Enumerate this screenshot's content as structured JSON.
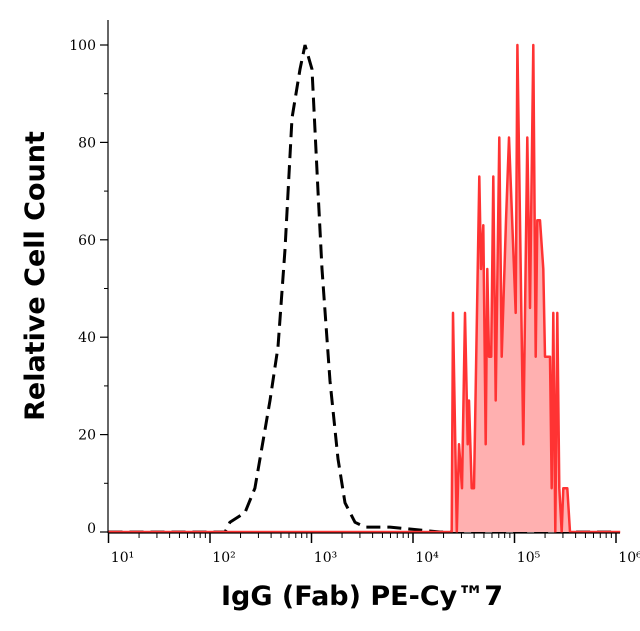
{
  "chart_data": {
    "type": "area",
    "xlabel": "IgG (Fab) PE-Cy™7",
    "ylabel": "Relative Cell Count",
    "x_scale": "log",
    "xlim": [
      10,
      1100000
    ],
    "ylim": [
      0,
      100
    ],
    "x_ticks": [
      10,
      100,
      1000,
      10000,
      100000,
      1000000
    ],
    "x_tick_labels": [
      "10¹",
      "10²",
      "10³",
      "10⁴",
      "10⁵",
      "10⁶"
    ],
    "y_ticks": [
      0,
      20,
      40,
      60,
      80,
      100
    ],
    "y_tick_labels": [
      "0",
      "20",
      "40",
      "60",
      "80",
      "100"
    ],
    "grid": false,
    "series": [
      {
        "style": "dashed-line",
        "color": "#000000",
        "x": [
          10,
          141,
          157,
          221,
          277,
          348,
          390,
          468,
          548,
          643,
          771,
          863,
          1012,
          1159,
          1268,
          1521,
          1824,
          2138,
          2684,
          3366,
          5929,
          18450,
          1000000
        ],
        "y": [
          0,
          0,
          2,
          4,
          9,
          21,
          27,
          38,
          58,
          85,
          95,
          100,
          95,
          70,
          54,
          31,
          15,
          6,
          2,
          1,
          1,
          0,
          0
        ]
      },
      {
        "style": "filled-area",
        "color": "#ff3333",
        "fill": "#ffb0b0",
        "x": [
          10,
          24050,
          24800,
          27000,
          28400,
          30400,
          32500,
          34600,
          35600,
          37900,
          39900,
          45000,
          46800,
          49300,
          52000,
          54000,
          56100,
          59000,
          61800,
          65300,
          70800,
          74800,
          82400,
          88300,
          102800,
          106700,
          122200,
          133700,
          142200,
          153200,
          161800,
          167900,
          178300,
          192200,
          199600,
          207500,
          223800,
          232600,
          241200,
          252300,
          264200,
          276300,
          291700,
          302700,
          319300,
          331100,
          352200,
          1100000
        ],
        "y": [
          0,
          0,
          45,
          0,
          18,
          9,
          45,
          18,
          27,
          9,
          9,
          73,
          54,
          63,
          18,
          54,
          36,
          36,
          73,
          27,
          81,
          36,
          64,
          81,
          45,
          100,
          18,
          81,
          46,
          100,
          36,
          64,
          64,
          54,
          36,
          36,
          36,
          9,
          45,
          0,
          45,
          9,
          0,
          9,
          9,
          9,
          0,
          0
        ]
      }
    ]
  }
}
